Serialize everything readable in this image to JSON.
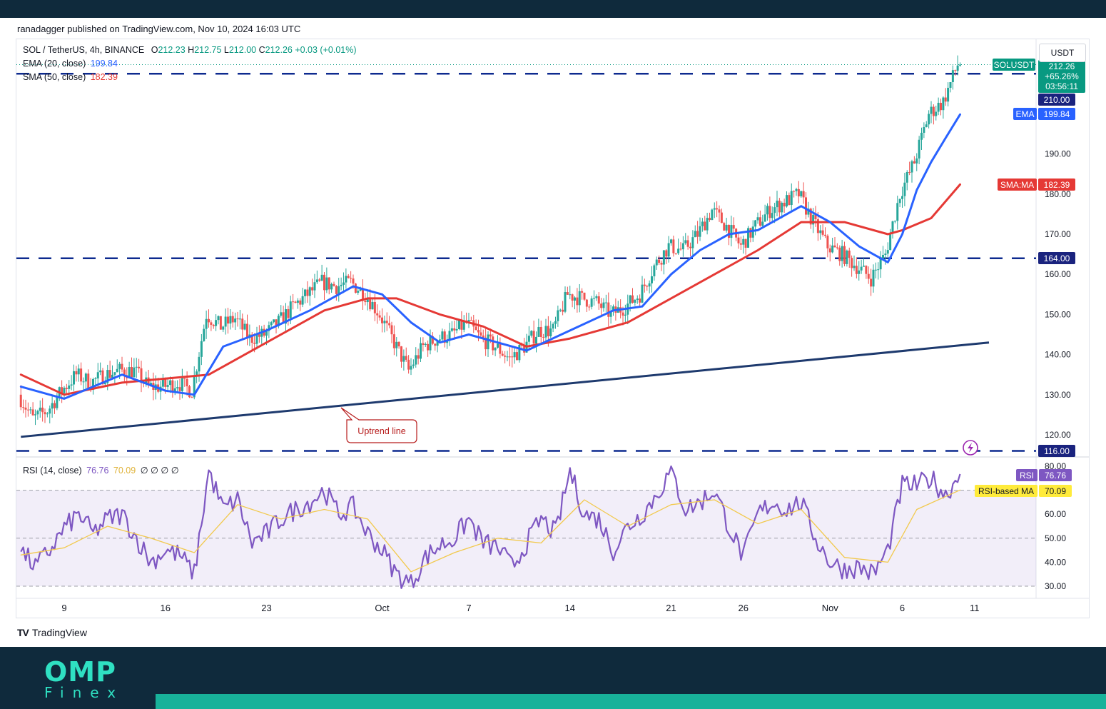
{
  "header": {
    "published": "ranadagger published on TradingView.com, Nov 10, 2024 16:03 UTC"
  },
  "legend": {
    "symbol": "SOL / TetherUS, 4h, BINANCE",
    "o_label": "O",
    "o": "212.23",
    "h_label": "H",
    "h": "212.75",
    "l_label": "L",
    "l": "212.00",
    "c_label": "C",
    "c": "212.26",
    "change": "+0.03 (+0.01%)",
    "ema_label": "EMA (20, close)",
    "ema": "199.84",
    "sma_label": "SMA (50, close)",
    "sma": "182.39",
    "rsi_label": "RSI (14, close)",
    "rsi": "76.76",
    "rsi_ma": "70.09",
    "rsi_extra": "∅ ∅ ∅ ∅"
  },
  "currency_badge": "USDT",
  "price_tags": {
    "symbol": "SOLUSDT",
    "price": "212.26",
    "pct": "+65.26%",
    "countdown": "03:56:11",
    "ema_name": "EMA",
    "ema_value": "199.84",
    "sma_name": "SMA:MA",
    "sma_value": "182.39",
    "rsi_name": "RSI",
    "rsi_value": "76.76",
    "rsi_ma_name": "RSI-based MA",
    "rsi_ma_value": "70.09"
  },
  "annotation": {
    "uptrend_label": "Uptrend line"
  },
  "footer": {
    "brand": "TradingView",
    "logo_top": "OMP",
    "logo_bottom": "Finex"
  },
  "colors": {
    "up": "#26a69a",
    "down": "#ef5350",
    "ema": "#2962ff",
    "sma": "#e53935",
    "levels": "#0d2a8f",
    "trendline": "#1e3a6e",
    "rsi": "#7e57c2",
    "rsi_ma": "#f2c94c"
  },
  "chart_data": [
    {
      "type": "candlestick",
      "interval": "4h",
      "y_ticks": [
        120,
        130,
        140,
        150,
        160,
        170,
        180,
        190
      ],
      "ylim": [
        116,
        216
      ],
      "x_tick_labels": [
        "9",
        "16",
        "23",
        "Oct",
        "7",
        "14",
        "21",
        "26",
        "Nov",
        "6",
        "11"
      ],
      "x_tick_dates": [
        "2024-09-09",
        "2024-09-16",
        "2024-09-23",
        "2024-10-01",
        "2024-10-07",
        "2024-10-14",
        "2024-10-21",
        "2024-10-26",
        "2024-11-01",
        "2024-11-06",
        "2024-11-11"
      ],
      "horizontal_levels": [
        {
          "value": 210.0,
          "label": "210.00"
        },
        {
          "value": 164.0,
          "label": "164.00"
        },
        {
          "value": 116.0,
          "label": "116.00"
        }
      ],
      "trendline": {
        "label": "Uptrend line",
        "start": [
          "2024-09-06",
          119.5
        ],
        "end": [
          "2024-11-12",
          143.0
        ]
      },
      "close_path": [
        [
          "2024-09-06",
          130
        ],
        [
          "2024-09-07",
          124
        ],
        [
          "2024-09-08",
          126
        ],
        [
          "2024-09-09",
          131
        ],
        [
          "2024-09-10",
          135
        ],
        [
          "2024-09-11",
          133
        ],
        [
          "2024-09-12",
          135
        ],
        [
          "2024-09-13",
          136
        ],
        [
          "2024-09-14",
          136
        ],
        [
          "2024-09-15",
          132
        ],
        [
          "2024-09-16",
          132
        ],
        [
          "2024-09-17",
          133
        ],
        [
          "2024-09-18",
          131
        ],
        [
          "2024-09-19",
          150
        ],
        [
          "2024-09-20",
          147
        ],
        [
          "2024-09-21",
          149
        ],
        [
          "2024-09-22",
          144
        ],
        [
          "2024-09-23",
          145
        ],
        [
          "2024-09-24",
          148
        ],
        [
          "2024-09-25",
          152
        ],
        [
          "2024-09-26",
          155
        ],
        [
          "2024-09-27",
          158
        ],
        [
          "2024-09-28",
          157
        ],
        [
          "2024-09-29",
          158
        ],
        [
          "2024-09-30",
          155
        ],
        [
          "2024-10-01",
          150
        ],
        [
          "2024-10-02",
          143
        ],
        [
          "2024-10-03",
          136
        ],
        [
          "2024-10-04",
          142
        ],
        [
          "2024-10-05",
          144
        ],
        [
          "2024-10-06",
          145
        ],
        [
          "2024-10-07",
          148
        ],
        [
          "2024-10-08",
          144
        ],
        [
          "2024-10-09",
          142
        ],
        [
          "2024-10-10",
          139
        ],
        [
          "2024-10-11",
          142
        ],
        [
          "2024-10-12",
          146
        ],
        [
          "2024-10-13",
          146
        ],
        [
          "2024-10-14",
          155
        ],
        [
          "2024-10-15",
          154
        ],
        [
          "2024-10-16",
          153
        ],
        [
          "2024-10-17",
          150
        ],
        [
          "2024-10-18",
          152
        ],
        [
          "2024-10-19",
          155
        ],
        [
          "2024-10-20",
          162
        ],
        [
          "2024-10-21",
          167
        ],
        [
          "2024-10-22",
          166
        ],
        [
          "2024-10-23",
          170
        ],
        [
          "2024-10-24",
          176
        ],
        [
          "2024-10-25",
          172
        ],
        [
          "2024-10-26",
          167
        ],
        [
          "2024-10-27",
          172
        ],
        [
          "2024-10-28",
          176
        ],
        [
          "2024-10-29",
          178
        ],
        [
          "2024-10-30",
          180
        ],
        [
          "2024-10-31",
          173
        ],
        [
          "2024-11-01",
          167
        ],
        [
          "2024-11-02",
          165
        ],
        [
          "2024-11-03",
          162
        ],
        [
          "2024-11-04",
          159
        ],
        [
          "2024-11-05",
          165
        ],
        [
          "2024-11-06",
          180
        ],
        [
          "2024-11-07",
          188
        ],
        [
          "2024-11-08",
          200
        ],
        [
          "2024-11-09",
          203
        ],
        [
          "2024-11-10",
          212.26
        ]
      ],
      "ema_path": [
        [
          "2024-09-06",
          132
        ],
        [
          "2024-09-09",
          129
        ],
        [
          "2024-09-13",
          135
        ],
        [
          "2024-09-16",
          131
        ],
        [
          "2024-09-18",
          130
        ],
        [
          "2024-09-20",
          142
        ],
        [
          "2024-09-23",
          146
        ],
        [
          "2024-09-26",
          151
        ],
        [
          "2024-09-29",
          157
        ],
        [
          "2024-10-01",
          155
        ],
        [
          "2024-10-03",
          148
        ],
        [
          "2024-10-05",
          143
        ],
        [
          "2024-10-07",
          145
        ],
        [
          "2024-10-09",
          143
        ],
        [
          "2024-10-11",
          141
        ],
        [
          "2024-10-14",
          146
        ],
        [
          "2024-10-17",
          151
        ],
        [
          "2024-10-19",
          152
        ],
        [
          "2024-10-21",
          160
        ],
        [
          "2024-10-23",
          166
        ],
        [
          "2024-10-25",
          170
        ],
        [
          "2024-10-27",
          171
        ],
        [
          "2024-10-30",
          177
        ],
        [
          "2024-11-01",
          173
        ],
        [
          "2024-11-03",
          167
        ],
        [
          "2024-11-05",
          163
        ],
        [
          "2024-11-06",
          170
        ],
        [
          "2024-11-07",
          181
        ],
        [
          "2024-11-08",
          188
        ],
        [
          "2024-11-09",
          194
        ],
        [
          "2024-11-10",
          199.84
        ]
      ],
      "sma_path": [
        [
          "2024-09-06",
          135
        ],
        [
          "2024-09-09",
          130
        ],
        [
          "2024-09-13",
          133
        ],
        [
          "2024-09-16",
          134
        ],
        [
          "2024-09-19",
          135
        ],
        [
          "2024-09-23",
          143
        ],
        [
          "2024-09-27",
          151
        ],
        [
          "2024-09-30",
          154
        ],
        [
          "2024-10-02",
          154
        ],
        [
          "2024-10-05",
          150
        ],
        [
          "2024-10-08",
          147
        ],
        [
          "2024-10-11",
          142
        ],
        [
          "2024-10-14",
          144
        ],
        [
          "2024-10-18",
          148
        ],
        [
          "2024-10-21",
          154
        ],
        [
          "2024-10-24",
          160
        ],
        [
          "2024-10-27",
          166
        ],
        [
          "2024-10-30",
          173
        ],
        [
          "2024-11-02",
          173
        ],
        [
          "2024-11-05",
          170
        ],
        [
          "2024-11-06",
          171
        ],
        [
          "2024-11-08",
          174
        ],
        [
          "2024-11-10",
          182.39
        ]
      ]
    },
    {
      "type": "line",
      "name": "RSI (14, close)",
      "y_ticks": [
        30,
        40,
        50,
        60,
        70,
        80
      ],
      "ylim": [
        28,
        80
      ],
      "band": [
        30,
        70
      ],
      "rsi_path": [
        [
          "2024-09-06",
          45
        ],
        [
          "2024-09-07",
          38
        ],
        [
          "2024-09-08",
          45
        ],
        [
          "2024-09-09",
          54
        ],
        [
          "2024-09-10",
          60
        ],
        [
          "2024-09-11",
          52
        ],
        [
          "2024-09-12",
          58
        ],
        [
          "2024-09-13",
          60
        ],
        [
          "2024-09-14",
          50
        ],
        [
          "2024-09-15",
          40
        ],
        [
          "2024-09-16",
          45
        ],
        [
          "2024-09-17",
          43
        ],
        [
          "2024-09-18",
          35
        ],
        [
          "2024-09-19",
          78
        ],
        [
          "2024-09-20",
          62
        ],
        [
          "2024-09-21",
          66
        ],
        [
          "2024-09-22",
          48
        ],
        [
          "2024-09-23",
          52
        ],
        [
          "2024-09-24",
          58
        ],
        [
          "2024-09-25",
          62
        ],
        [
          "2024-09-26",
          65
        ],
        [
          "2024-09-27",
          70
        ],
        [
          "2024-09-28",
          60
        ],
        [
          "2024-09-29",
          63
        ],
        [
          "2024-09-30",
          52
        ],
        [
          "2024-10-01",
          45
        ],
        [
          "2024-10-02",
          35
        ],
        [
          "2024-10-03",
          31
        ],
        [
          "2024-10-04",
          42
        ],
        [
          "2024-10-05",
          47
        ],
        [
          "2024-10-06",
          50
        ],
        [
          "2024-10-07",
          58
        ],
        [
          "2024-10-08",
          48
        ],
        [
          "2024-10-09",
          46
        ],
        [
          "2024-10-10",
          38
        ],
        [
          "2024-10-11",
          48
        ],
        [
          "2024-10-12",
          58
        ],
        [
          "2024-10-13",
          52
        ],
        [
          "2024-10-14",
          78
        ],
        [
          "2024-10-15",
          60
        ],
        [
          "2024-10-16",
          58
        ],
        [
          "2024-10-17",
          45
        ],
        [
          "2024-10-18",
          55
        ],
        [
          "2024-10-19",
          60
        ],
        [
          "2024-10-20",
          68
        ],
        [
          "2024-10-21",
          78
        ],
        [
          "2024-10-22",
          62
        ],
        [
          "2024-10-23",
          65
        ],
        [
          "2024-10-24",
          70
        ],
        [
          "2024-10-25",
          55
        ],
        [
          "2024-10-26",
          42
        ],
        [
          "2024-10-27",
          60
        ],
        [
          "2024-10-28",
          65
        ],
        [
          "2024-10-29",
          62
        ],
        [
          "2024-10-30",
          65
        ],
        [
          "2024-10-31",
          50
        ],
        [
          "2024-11-01",
          40
        ],
        [
          "2024-11-02",
          37
        ],
        [
          "2024-11-03",
          38
        ],
        [
          "2024-11-04",
          35
        ],
        [
          "2024-11-05",
          45
        ],
        [
          "2024-11-06",
          72
        ],
        [
          "2024-11-07",
          72
        ],
        [
          "2024-11-08",
          75
        ],
        [
          "2024-11-09",
          68
        ],
        [
          "2024-11-10",
          76.76
        ]
      ],
      "rsi_ma_path": [
        [
          "2024-09-06",
          43
        ],
        [
          "2024-09-09",
          46
        ],
        [
          "2024-09-12",
          55
        ],
        [
          "2024-09-15",
          50
        ],
        [
          "2024-09-18",
          44
        ],
        [
          "2024-09-21",
          64
        ],
        [
          "2024-09-24",
          58
        ],
        [
          "2024-09-27",
          62
        ],
        [
          "2024-09-30",
          58
        ],
        [
          "2024-10-03",
          36
        ],
        [
          "2024-10-06",
          44
        ],
        [
          "2024-10-09",
          50
        ],
        [
          "2024-10-12",
          48
        ],
        [
          "2024-10-15",
          66
        ],
        [
          "2024-10-18",
          55
        ],
        [
          "2024-10-21",
          64
        ],
        [
          "2024-10-24",
          66
        ],
        [
          "2024-10-27",
          56
        ],
        [
          "2024-10-30",
          62
        ],
        [
          "2024-11-02",
          42
        ],
        [
          "2024-11-05",
          40
        ],
        [
          "2024-11-07",
          62
        ],
        [
          "2024-11-10",
          70.09
        ]
      ]
    }
  ]
}
